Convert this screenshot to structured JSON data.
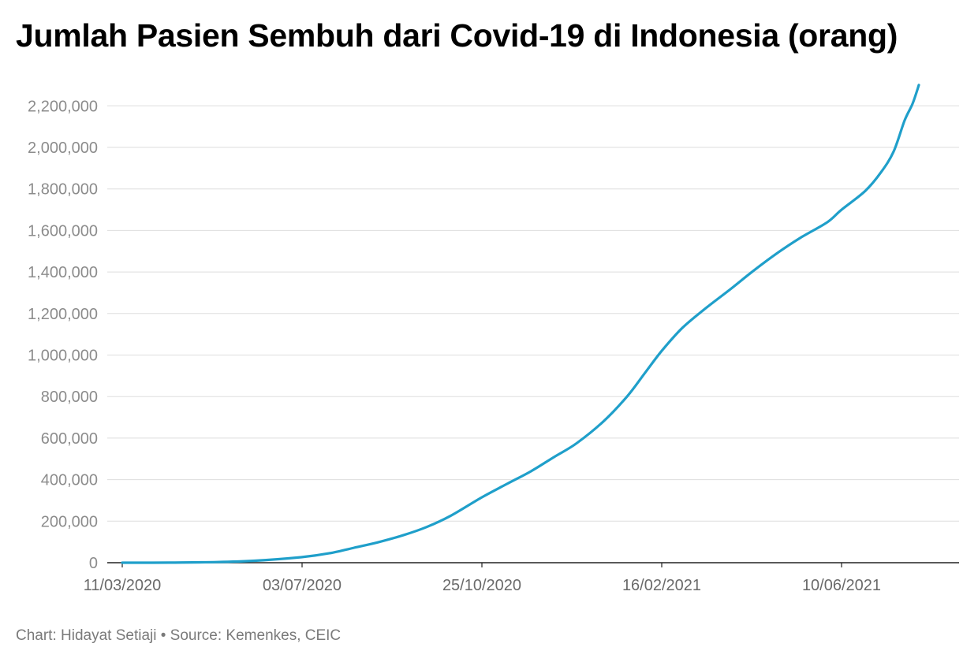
{
  "chart_data": {
    "type": "line",
    "title": "Jumlah Pasien Sembuh dari Covid-19 di Indonesia (orang)",
    "credit": "Chart: Hidayat Setiaji • Source: Kemenkes, CEIC",
    "xlabel": "",
    "ylabel": "",
    "x_range": [
      "11/03/2020",
      "29/07/2021"
    ],
    "ylim": [
      0,
      2300000
    ],
    "y_ticks": [
      0,
      200000,
      400000,
      600000,
      800000,
      1000000,
      1200000,
      1400000,
      1600000,
      1800000,
      2000000,
      2200000
    ],
    "y_tick_labels": [
      "0",
      "200,000",
      "400,000",
      "600,000",
      "800,000",
      "1,000,000",
      "1,200,000",
      "1,400,000",
      "1,600,000",
      "1,800,000",
      "2,000,000",
      "2,200,000"
    ],
    "x_ticks": [
      "11/03/2020",
      "03/07/2020",
      "25/10/2020",
      "16/02/2021",
      "10/06/2021"
    ],
    "grid": true,
    "legend": "none",
    "line_color": "#1f9fca",
    "series": [
      {
        "points": [
          [
            "11/03/2020",
            0
          ],
          [
            "10/04/2020",
            500
          ],
          [
            "10/05/2020",
            3200
          ],
          [
            "03/06/2020",
            9500
          ],
          [
            "03/07/2020",
            27000
          ],
          [
            "20/07/2020",
            45000
          ],
          [
            "05/08/2020",
            72000
          ],
          [
            "20/08/2020",
            98000
          ],
          [
            "05/09/2020",
            132000
          ],
          [
            "20/09/2020",
            172000
          ],
          [
            "05/10/2020",
            225000
          ],
          [
            "25/10/2020",
            315000
          ],
          [
            "10/11/2020",
            380000
          ],
          [
            "25/11/2020",
            440000
          ],
          [
            "10/12/2020",
            510000
          ],
          [
            "24/12/2020",
            575000
          ],
          [
            "10/01/2021",
            680000
          ],
          [
            "25/01/2021",
            800000
          ],
          [
            "05/02/2021",
            910000
          ],
          [
            "16/02/2021",
            1020000
          ],
          [
            "01/03/2021",
            1130000
          ],
          [
            "15/03/2021",
            1220000
          ],
          [
            "01/04/2021",
            1320000
          ],
          [
            "15/04/2021",
            1405000
          ],
          [
            "01/05/2021",
            1495000
          ],
          [
            "15/05/2021",
            1565000
          ],
          [
            "01/06/2021",
            1640000
          ],
          [
            "10/06/2021",
            1700000
          ],
          [
            "25/06/2021",
            1790000
          ],
          [
            "05/07/2021",
            1880000
          ],
          [
            "13/07/2021",
            1980000
          ],
          [
            "20/07/2021",
            2130000
          ],
          [
            "25/07/2021",
            2210000
          ],
          [
            "29/07/2021",
            2300000
          ]
        ]
      }
    ]
  }
}
